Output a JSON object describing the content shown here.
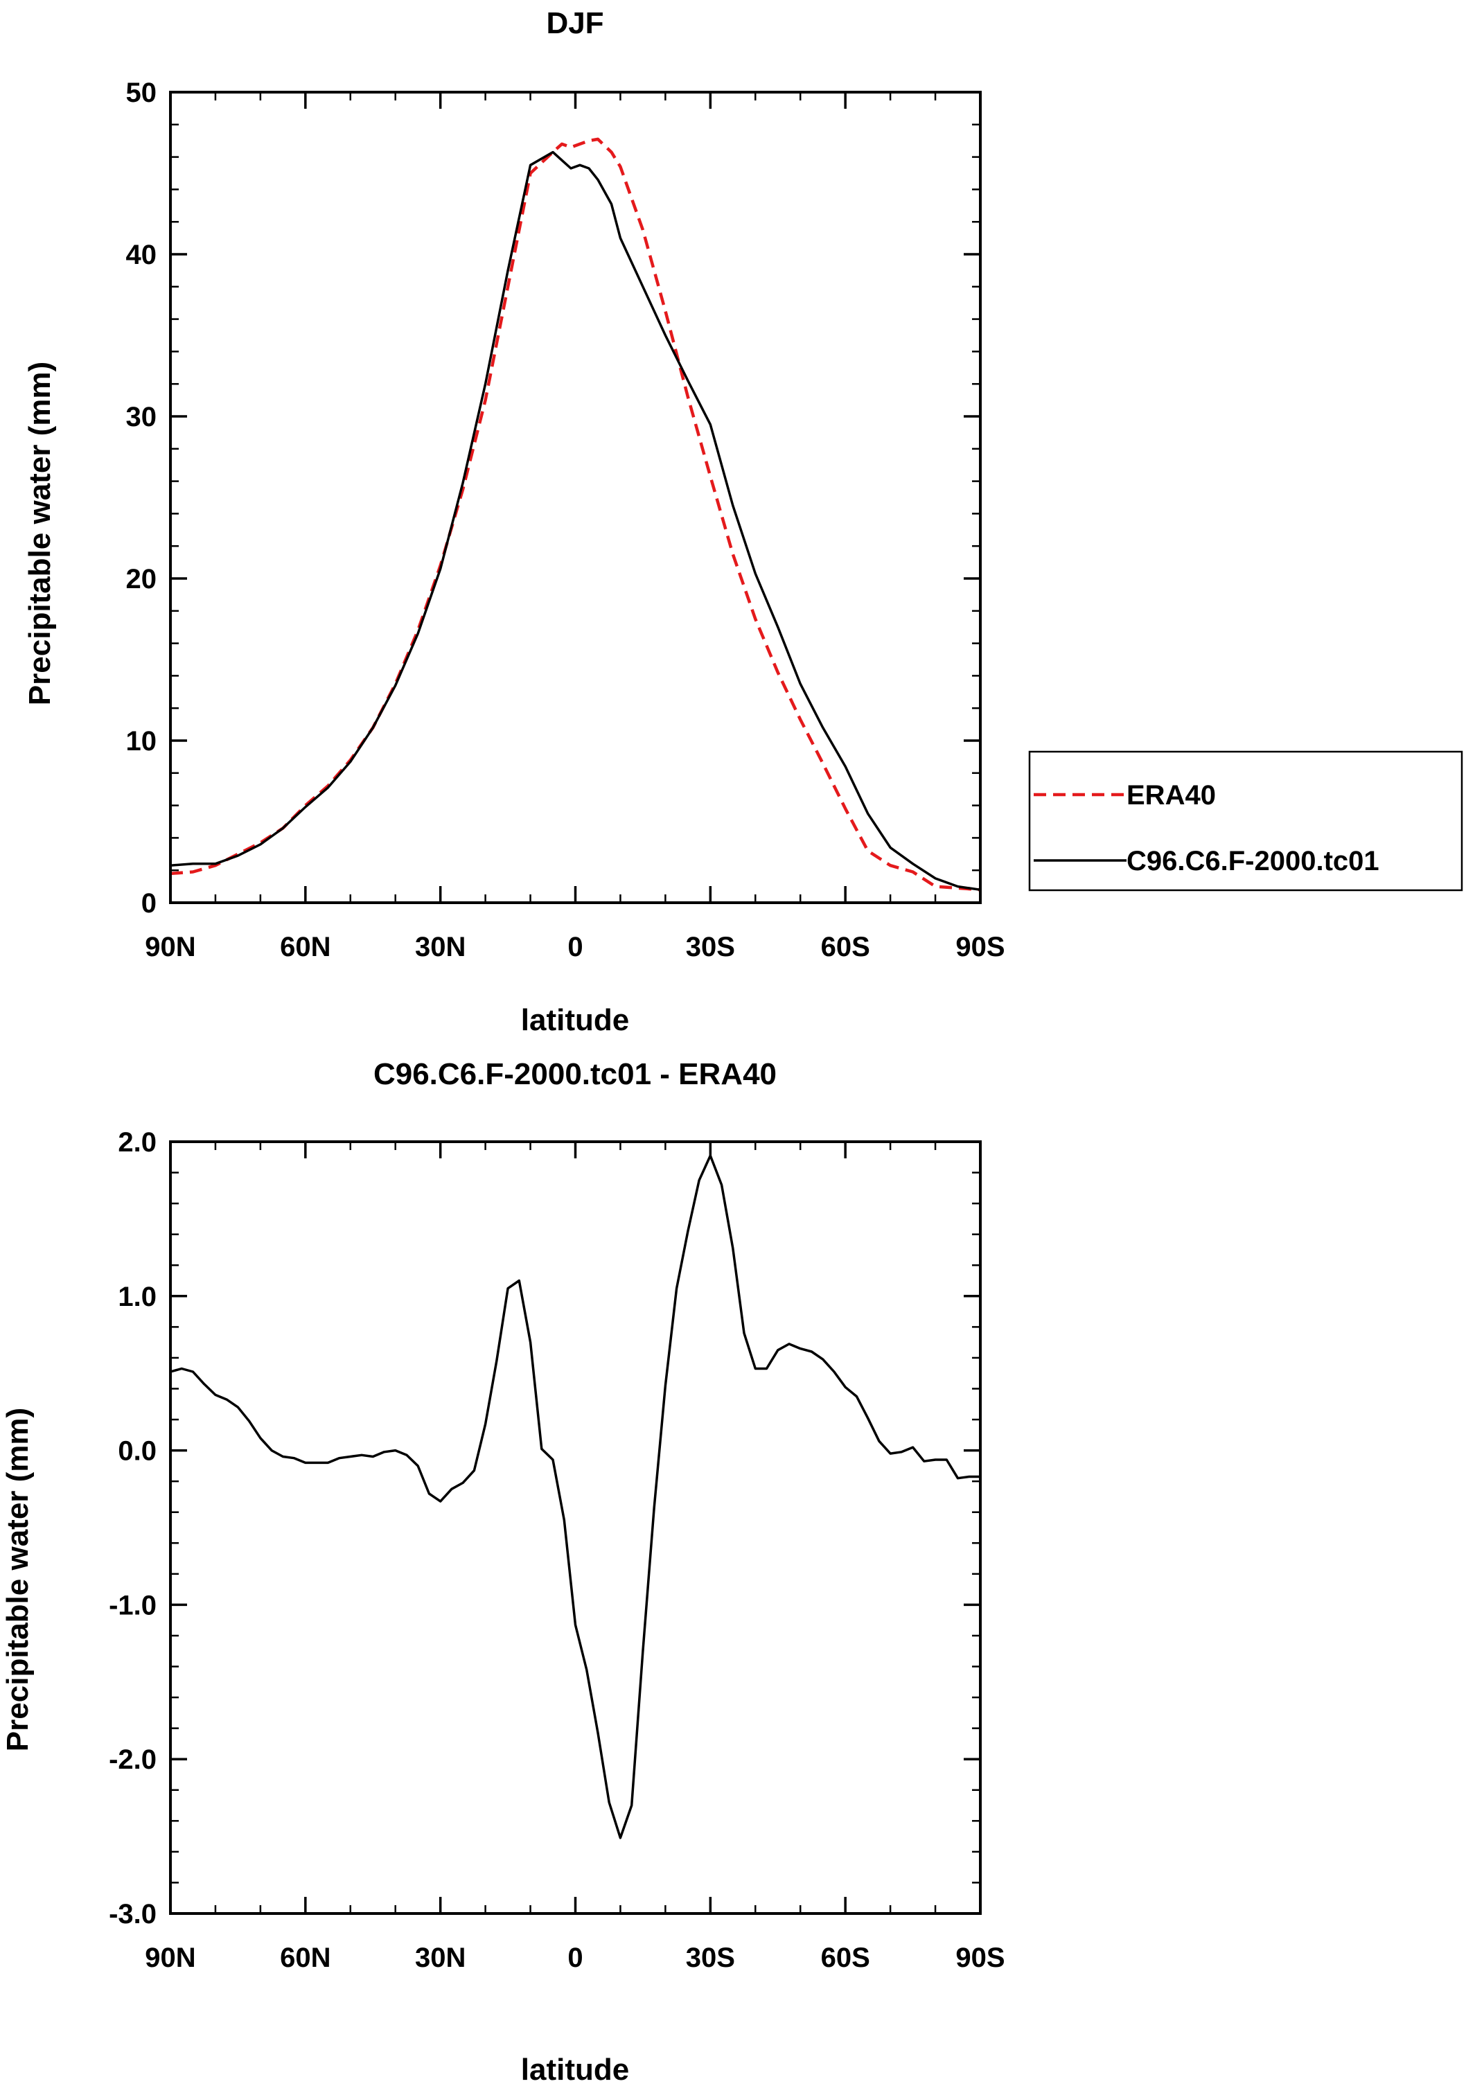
{
  "colors": {
    "model": "#000000",
    "era40": "#e41a1c",
    "axis": "#000000",
    "background": "#ffffff"
  },
  "chart_data": [
    {
      "type": "line",
      "title": "DJF",
      "xlabel": "latitude",
      "ylabel": "Precipitable water (mm)",
      "xlim": [
        90,
        -90
      ],
      "ylim": [
        0,
        50
      ],
      "xticks": [
        {
          "value": 90,
          "label": "90N"
        },
        {
          "value": 60,
          "label": "60N"
        },
        {
          "value": 30,
          "label": "30N"
        },
        {
          "value": 0,
          "label": "0"
        },
        {
          "value": -30,
          "label": "30S"
        },
        {
          "value": -60,
          "label": "60S"
        },
        {
          "value": -90,
          "label": "90S"
        }
      ],
      "yticks": [
        {
          "value": 0,
          "label": "0"
        },
        {
          "value": 10,
          "label": "10"
        },
        {
          "value": 20,
          "label": "20"
        },
        {
          "value": 30,
          "label": "30"
        },
        {
          "value": 40,
          "label": "40"
        },
        {
          "value": 50,
          "label": "50"
        }
      ],
      "legend": {
        "position": "right",
        "entries": [
          "ERA40",
          "C96.C6.F-2000.tc01"
        ]
      },
      "series": [
        {
          "name": "ERA40",
          "style": "dashed",
          "x": [
            90,
            85,
            80,
            75,
            70,
            65,
            60,
            55,
            50,
            45,
            40,
            35,
            30,
            25,
            20,
            15,
            10,
            5,
            3,
            1,
            -1,
            -3,
            -5,
            -8,
            -10,
            -15,
            -20,
            -25,
            -30,
            -35,
            -40,
            -45,
            -50,
            -55,
            -60,
            -65,
            -70,
            -75,
            -80,
            -85,
            -90
          ],
          "values": [
            1.8,
            1.9,
            2.3,
            3.0,
            3.7,
            4.6,
            6.0,
            7.2,
            8.8,
            10.8,
            13.5,
            16.8,
            20.8,
            25.5,
            31.0,
            38.0,
            45.0,
            46.3,
            46.8,
            46.6,
            46.8,
            47.0,
            47.1,
            46.3,
            45.4,
            41.5,
            36.5,
            31.2,
            26.3,
            21.5,
            17.5,
            14.2,
            11.3,
            8.6,
            5.8,
            3.2,
            2.3,
            1.9,
            1.0,
            0.9,
            0.8
          ]
        },
        {
          "name": "C96.C6.F-2000.tc01",
          "style": "solid",
          "x": [
            90,
            85,
            80,
            75,
            70,
            65,
            60,
            55,
            50,
            45,
            40,
            35,
            30,
            25,
            20,
            15,
            10,
            5,
            3,
            1,
            -1,
            -3,
            -5,
            -8,
            -10,
            -15,
            -20,
            -25,
            -30,
            -35,
            -40,
            -45,
            -50,
            -55,
            -60,
            -65,
            -70,
            -75,
            -80,
            -85,
            -90
          ],
          "values": [
            2.3,
            2.4,
            2.4,
            2.9,
            3.6,
            4.6,
            5.9,
            7.1,
            8.7,
            10.8,
            13.4,
            16.6,
            20.6,
            25.9,
            32.0,
            39.0,
            45.5,
            46.3,
            45.8,
            45.3,
            45.5,
            45.3,
            44.6,
            43.1,
            41.0,
            38.0,
            35.0,
            32.2,
            29.5,
            24.5,
            20.3,
            17.0,
            13.5,
            10.8,
            8.4,
            5.5,
            3.4,
            2.4,
            1.5,
            1.0,
            0.8
          ]
        }
      ]
    },
    {
      "type": "line",
      "title": "C96.C6.F-2000.tc01 - ERA40",
      "xlabel": "latitude",
      "ylabel": "Precipitable water (mm)",
      "xlim": [
        90,
        -90
      ],
      "ylim": [
        -3.0,
        2.0
      ],
      "xticks": [
        {
          "value": 90,
          "label": "90N"
        },
        {
          "value": 60,
          "label": "60N"
        },
        {
          "value": 30,
          "label": "30N"
        },
        {
          "value": 0,
          "label": "0"
        },
        {
          "value": -30,
          "label": "30S"
        },
        {
          "value": -60,
          "label": "60S"
        },
        {
          "value": -90,
          "label": "90S"
        }
      ],
      "yticks": [
        {
          "value": -3.0,
          "label": "-3.0"
        },
        {
          "value": -2.0,
          "label": "-2.0"
        },
        {
          "value": -1.0,
          "label": "-1.0"
        },
        {
          "value": 0.0,
          "label": "0.0"
        },
        {
          "value": 1.0,
          "label": "1.0"
        },
        {
          "value": 2.0,
          "label": "2.0"
        }
      ],
      "series": [
        {
          "name": "C96.C6.F-2000.tc01 - ERA40",
          "style": "solid",
          "x": [
            90,
            87.5,
            85,
            82.5,
            80,
            77.5,
            75,
            72.5,
            70,
            67.5,
            65,
            62.5,
            60,
            57.5,
            55,
            52.5,
            50,
            47.5,
            45,
            42.5,
            40,
            37.5,
            35,
            32.5,
            30,
            27.5,
            25,
            22.5,
            20,
            17.5,
            15,
            12.5,
            10,
            7.5,
            5,
            2.5,
            0,
            -2.5,
            -5,
            -7.5,
            -10,
            -12.5,
            -15,
            -17.5,
            -20,
            -22.5,
            -25,
            -27.5,
            -30,
            -32.5,
            -35,
            -37.5,
            -40,
            -42.5,
            -45,
            -47.5,
            -50,
            -52.5,
            -55,
            -57.5,
            -60,
            -62.5,
            -65,
            -67.5,
            -70,
            -72.5,
            -75,
            -77.5,
            -80,
            -82.5,
            -85,
            -87.5,
            -90
          ],
          "values": [
            0.51,
            0.53,
            0.51,
            0.43,
            0.36,
            0.33,
            0.28,
            0.19,
            0.08,
            0.0,
            -0.04,
            -0.05,
            -0.08,
            -0.08,
            -0.08,
            -0.05,
            -0.04,
            -0.03,
            -0.04,
            -0.01,
            0.0,
            -0.03,
            -0.1,
            -0.28,
            -0.33,
            -0.25,
            -0.21,
            -0.13,
            0.17,
            0.58,
            1.05,
            1.1,
            0.7,
            0.01,
            -0.06,
            -0.45,
            -1.13,
            -1.42,
            -1.83,
            -2.28,
            -2.51,
            -2.3,
            -1.3,
            -0.37,
            0.42,
            1.05,
            1.42,
            1.75,
            1.91,
            1.72,
            1.31,
            0.76,
            0.53,
            0.53,
            0.65,
            0.69,
            0.66,
            0.64,
            0.59,
            0.51,
            0.41,
            0.35,
            0.21,
            0.06,
            -0.02,
            -0.01,
            0.02,
            -0.07,
            -0.06,
            -0.06,
            -0.18,
            -0.17,
            -0.17
          ]
        }
      ]
    }
  ]
}
